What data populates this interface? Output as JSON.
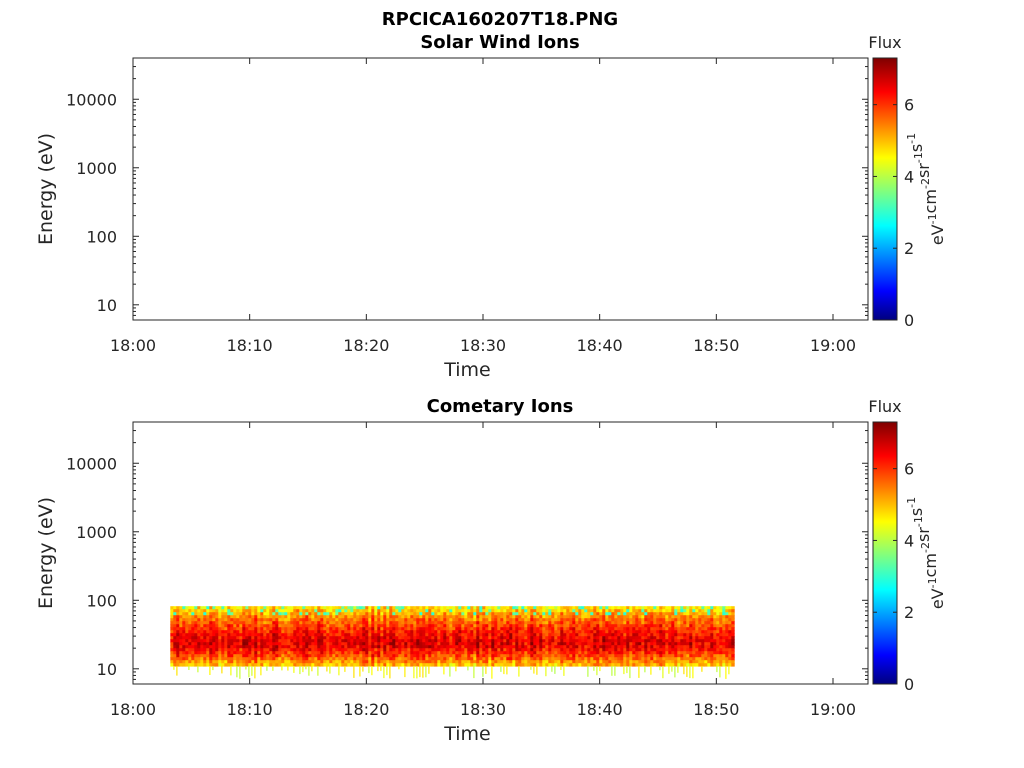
{
  "figure_title": "RPCICA160207T18.PNG",
  "chart_data": [
    {
      "type": "heatmap",
      "title": "Solar Wind Ions",
      "xlabel": "Time",
      "ylabel": "Energy (eV)",
      "x_tick_labels": [
        "18:00",
        "18:10",
        "18:20",
        "18:30",
        "18:40",
        "18:50",
        "19:00"
      ],
      "x_range_minutes": [
        0,
        63
      ],
      "y_scale": "log",
      "y_range": [
        6,
        40000
      ],
      "y_ticks": [
        10,
        100,
        1000,
        10000
      ],
      "y_tick_labels": [
        "10",
        "100",
        "1000",
        "10000"
      ],
      "colorbar": {
        "label": "Flux",
        "unit": "eV-1 cm-2 sr-1 s-1",
        "range": [
          0,
          7.3
        ],
        "ticks": [
          0,
          2,
          4,
          6
        ],
        "tick_labels": [
          "0",
          "2",
          "4",
          "6"
        ],
        "colormap": "jet"
      },
      "data_present": false,
      "band": null,
      "grid": false
    },
    {
      "type": "heatmap",
      "title": "Cometary Ions",
      "xlabel": "Time",
      "ylabel": "Energy (eV)",
      "x_tick_labels": [
        "18:00",
        "18:10",
        "18:20",
        "18:30",
        "18:40",
        "18:50",
        "19:00"
      ],
      "x_range_minutes": [
        0,
        63
      ],
      "y_scale": "log",
      "y_range": [
        6,
        40000
      ],
      "y_ticks": [
        10,
        100,
        1000,
        10000
      ],
      "y_tick_labels": [
        "10",
        "100",
        "1000",
        "10000"
      ],
      "colorbar": {
        "label": "Flux",
        "unit": "eV-1 cm-2 sr-1 s-1",
        "range": [
          0,
          7.3
        ],
        "ticks": [
          0,
          2,
          4,
          6
        ],
        "tick_labels": [
          "0",
          "2",
          "4",
          "6"
        ],
        "colormap": "jet"
      },
      "data_present": true,
      "band": {
        "start_minute": 3.2,
        "end_minute": 51.5,
        "energy_min": 11,
        "energy_max": 82,
        "peak_energy": 25,
        "peak_flux": 6.6,
        "edge_flux": 4.8
      },
      "grid": false
    }
  ]
}
